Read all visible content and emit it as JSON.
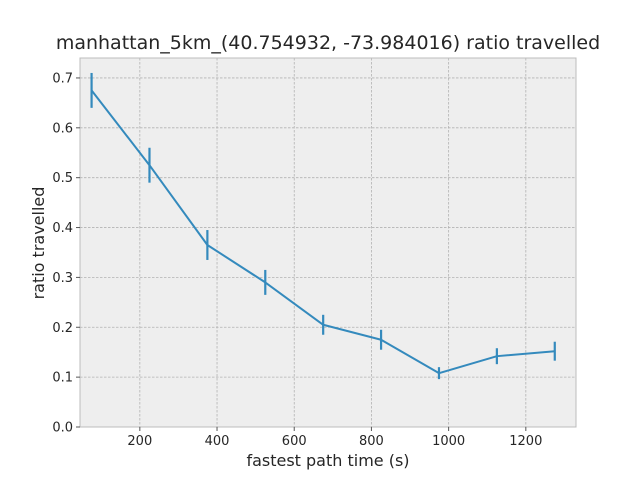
{
  "chart_data": {
    "type": "line",
    "title": "manhattan_5km_(40.754932, -73.984016) ratio travelled",
    "xlabel": "fastest path time (s)",
    "ylabel": "ratio travelled",
    "xlim": [
      45,
      1330
    ],
    "ylim": [
      0,
      0.74
    ],
    "xticks": [
      200,
      400,
      600,
      800,
      1000,
      1200
    ],
    "yticks": [
      0.0,
      0.1,
      0.2,
      0.3,
      0.4,
      0.5,
      0.6,
      0.7
    ],
    "grid": true,
    "series": [
      {
        "color": "#348abd",
        "x": [
          75,
          225,
          375,
          525,
          675,
          825,
          975,
          1125,
          1275
        ],
        "y": [
          0.675,
          0.525,
          0.365,
          0.29,
          0.205,
          0.175,
          0.108,
          0.142,
          0.152
        ],
        "error": [
          0.035,
          0.035,
          0.03,
          0.025,
          0.02,
          0.02,
          0.012,
          0.016,
          0.019
        ]
      }
    ]
  }
}
